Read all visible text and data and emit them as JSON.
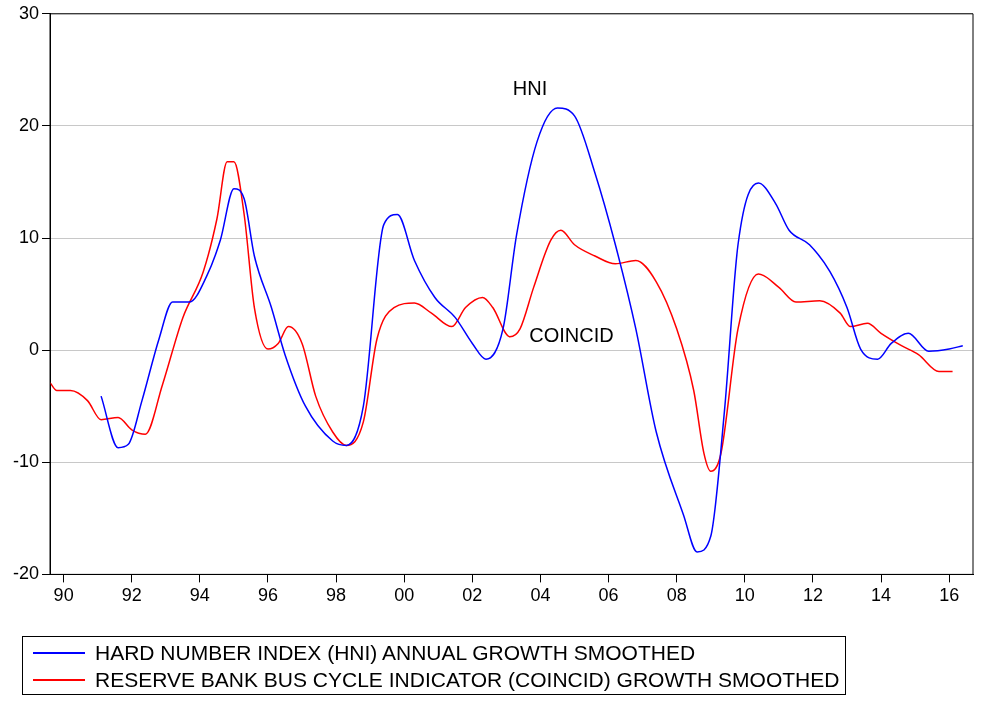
{
  "chart_data": {
    "type": "line",
    "xlim": [
      1989.6,
      2016.7
    ],
    "xticks": [
      {
        "value": 1990,
        "label": "90"
      },
      {
        "value": 1992,
        "label": "92"
      },
      {
        "value": 1994,
        "label": "94"
      },
      {
        "value": 1996,
        "label": "96"
      },
      {
        "value": 1998,
        "label": "98"
      },
      {
        "value": 2000,
        "label": "00"
      },
      {
        "value": 2002,
        "label": "02"
      },
      {
        "value": 2004,
        "label": "04"
      },
      {
        "value": 2006,
        "label": "06"
      },
      {
        "value": 2008,
        "label": "08"
      },
      {
        "value": 2010,
        "label": "10"
      },
      {
        "value": 2012,
        "label": "12"
      },
      {
        "value": 2014,
        "label": "14"
      },
      {
        "value": 2016,
        "label": "16"
      }
    ],
    "ylim": [
      -20,
      30
    ],
    "yticks": [
      -20,
      -10,
      0,
      10,
      20,
      30
    ],
    "grid": "y",
    "legend": "bottom",
    "marker": "none",
    "line_style": "solid",
    "annotations": [
      "HNI",
      "COINCID"
    ],
    "series": [
      {
        "name": "HARD NUMBER INDEX (HNI) ANNUAL GROWTH SMOOTHED",
        "color": "#0000ff",
        "x": [
          1991.1,
          1991.6,
          1991.9,
          1992.3,
          1992.8,
          1993.2,
          1993.7,
          1994.2,
          1994.6,
          1995.0,
          1995.3,
          1995.6,
          1996.1,
          1996.5,
          1997.1,
          1997.9,
          1998.3,
          1998.8,
          1999.4,
          1999.8,
          2000.3,
          2000.9,
          2001.5,
          2002.0,
          2002.4,
          2002.9,
          2003.3,
          2003.9,
          2004.5,
          2005.0,
          2005.6,
          2006.2,
          2006.8,
          2007.4,
          2008.2,
          2008.6,
          2009.0,
          2009.4,
          2009.8,
          2010.4,
          2010.9,
          2011.3,
          2011.9,
          2012.5,
          2013.0,
          2013.4,
          2013.9,
          2014.3,
          2014.8,
          2015.4,
          2016.0,
          2016.4
        ],
        "values": [
          -4.1,
          -8.7,
          -8.4,
          -4.5,
          1.0,
          4.3,
          4.3,
          6.6,
          9.8,
          14.4,
          13.5,
          8.4,
          3.8,
          -0.4,
          -5.0,
          -8.1,
          -8.5,
          -5.0,
          11.2,
          12.1,
          8.0,
          4.7,
          2.9,
          0.6,
          -0.8,
          1.9,
          10.3,
          18.6,
          21.6,
          20.9,
          15.8,
          9.4,
          1.9,
          -7.3,
          -14.7,
          -18.0,
          -16.6,
          -5.5,
          9.4,
          14.9,
          13.1,
          10.7,
          9.4,
          7.0,
          3.8,
          0.1,
          -0.8,
          0.6,
          1.5,
          -0.1,
          0.1,
          0.4
        ]
      },
      {
        "name": "RESERVE BANK BUS CYCLE INDICATOR (COINCID) GROWTH SMOOTHED",
        "color": "#ff0000",
        "x": [
          1989.6,
          1989.8,
          1990.2,
          1990.7,
          1991.1,
          1991.6,
          1992.0,
          1992.4,
          1992.9,
          1993.5,
          1994.1,
          1994.5,
          1994.8,
          1995.0,
          1995.3,
          1995.6,
          1996.0,
          1996.3,
          1996.6,
          1997.0,
          1997.4,
          1997.9,
          1998.3,
          1998.8,
          1999.2,
          1999.7,
          2000.3,
          2000.8,
          2001.4,
          2001.8,
          2002.3,
          2002.6,
          2003.1,
          2003.4,
          2003.8,
          2004.3,
          2004.6,
          2005.0,
          2005.6,
          2006.2,
          2006.8,
          2007.4,
          2008.0,
          2008.5,
          2008.8,
          2009.0,
          2009.3,
          2009.8,
          2010.4,
          2011.0,
          2011.5,
          2012.2,
          2012.8,
          2013.1,
          2013.6,
          2014.0,
          2014.6,
          2015.1,
          2015.7,
          2016.1
        ],
        "values": [
          -2.9,
          -3.6,
          -3.6,
          -4.5,
          -6.2,
          -6.0,
          -7.1,
          -7.5,
          -3.1,
          2.9,
          7.0,
          11.7,
          16.8,
          16.8,
          12.1,
          3.8,
          0.1,
          0.6,
          2.1,
          0.6,
          -4.1,
          -7.3,
          -8.5,
          -6.4,
          1.0,
          3.8,
          4.2,
          3.3,
          2.1,
          3.8,
          4.7,
          3.8,
          1.2,
          1.9,
          5.6,
          9.8,
          10.7,
          9.4,
          8.4,
          7.7,
          8.0,
          6.1,
          1.9,
          -3.6,
          -9.2,
          -10.8,
          -9.2,
          1.9,
          6.8,
          5.6,
          4.3,
          4.4,
          3.3,
          2.1,
          2.4,
          1.5,
          0.4,
          -0.4,
          -1.9,
          -1.9
        ]
      }
    ]
  }
}
